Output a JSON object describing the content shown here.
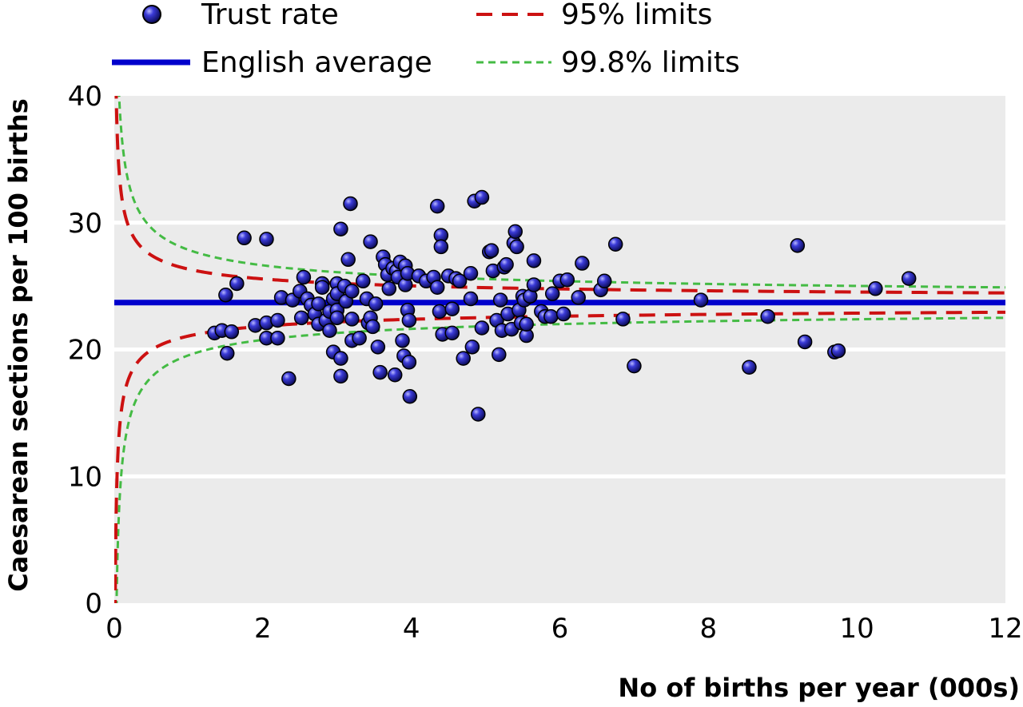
{
  "chart_data": {
    "type": "scatter",
    "xlabel": "No of births per year (000s)",
    "ylabel": "Caesarean sections per 100 births",
    "xlim": [
      0,
      12
    ],
    "ylim": [
      0,
      40
    ],
    "xticks": [
      "0",
      "2",
      "4",
      "6",
      "8",
      "10",
      "12"
    ],
    "yticks": [
      "0",
      "10",
      "20",
      "30",
      "40"
    ],
    "grid": "horizontal",
    "legend_position": "top",
    "legend": {
      "trust_rate": "Trust rate",
      "english_average": "English average",
      "limits_95": "95% limits",
      "limits_998": "99.8% limits"
    },
    "colors": {
      "points": "#2a2ab8",
      "average": "#0000cc",
      "limits_95": "#cc1111",
      "limits_998": "#44bb44",
      "plot_background": "#ebebeb"
    },
    "english_average": 23.7,
    "series": [
      {
        "name": "Trust rate",
        "points": [
          [
            1.35,
            21.3
          ],
          [
            1.45,
            21.5
          ],
          [
            1.5,
            24.3
          ],
          [
            1.52,
            19.7
          ],
          [
            1.58,
            21.4
          ],
          [
            1.65,
            25.2
          ],
          [
            1.75,
            28.8
          ],
          [
            1.9,
            21.9
          ],
          [
            2.05,
            28.7
          ],
          [
            2.05,
            22.1
          ],
          [
            2.05,
            20.9
          ],
          [
            2.2,
            22.3
          ],
          [
            2.2,
            20.9
          ],
          [
            2.25,
            24.1
          ],
          [
            2.35,
            17.7
          ],
          [
            2.4,
            23.9
          ],
          [
            2.5,
            24.6
          ],
          [
            2.52,
            22.5
          ],
          [
            2.55,
            25.7
          ],
          [
            2.6,
            24.0
          ],
          [
            2.65,
            23.5
          ],
          [
            2.7,
            22.8
          ],
          [
            2.75,
            22.0
          ],
          [
            2.75,
            23.6
          ],
          [
            2.8,
            25.2
          ],
          [
            2.8,
            24.9
          ],
          [
            2.85,
            22.3
          ],
          [
            2.9,
            21.5
          ],
          [
            2.9,
            23.0
          ],
          [
            2.95,
            24.0
          ],
          [
            3.0,
            25.2
          ],
          [
            3.0,
            24.4
          ],
          [
            3.0,
            23.1
          ],
          [
            3.0,
            22.5
          ],
          [
            2.95,
            19.8
          ],
          [
            3.05,
            19.3
          ],
          [
            3.05,
            17.9
          ],
          [
            3.05,
            29.5
          ],
          [
            3.1,
            25.0
          ],
          [
            3.12,
            23.8
          ],
          [
            3.15,
            27.1
          ],
          [
            3.18,
            31.5
          ],
          [
            3.2,
            24.6
          ],
          [
            3.2,
            22.4
          ],
          [
            3.2,
            20.7
          ],
          [
            3.3,
            20.9
          ],
          [
            3.35,
            25.4
          ],
          [
            3.4,
            24.0
          ],
          [
            3.42,
            22.1
          ],
          [
            3.45,
            28.5
          ],
          [
            3.45,
            22.5
          ],
          [
            3.48,
            21.8
          ],
          [
            3.52,
            23.6
          ],
          [
            3.55,
            20.2
          ],
          [
            3.58,
            18.2
          ],
          [
            3.62,
            27.3
          ],
          [
            3.65,
            26.7
          ],
          [
            3.68,
            25.9
          ],
          [
            3.7,
            24.8
          ],
          [
            3.75,
            26.4
          ],
          [
            3.78,
            18.0
          ],
          [
            3.8,
            26.2
          ],
          [
            3.82,
            25.7
          ],
          [
            3.85,
            26.9
          ],
          [
            3.88,
            20.7
          ],
          [
            3.9,
            19.5
          ],
          [
            3.92,
            26.6
          ],
          [
            3.92,
            25.1
          ],
          [
            3.95,
            26.0
          ],
          [
            3.95,
            23.1
          ],
          [
            3.97,
            22.3
          ],
          [
            3.97,
            19.0
          ],
          [
            3.98,
            16.3
          ],
          [
            4.1,
            25.8
          ],
          [
            4.2,
            25.4
          ],
          [
            4.3,
            25.7
          ],
          [
            4.35,
            31.3
          ],
          [
            4.35,
            24.9
          ],
          [
            4.38,
            23.0
          ],
          [
            4.4,
            29.0
          ],
          [
            4.4,
            28.1
          ],
          [
            4.42,
            21.2
          ],
          [
            4.5,
            25.8
          ],
          [
            4.55,
            23.2
          ],
          [
            4.55,
            21.3
          ],
          [
            4.6,
            25.6
          ],
          [
            4.65,
            25.4
          ],
          [
            4.7,
            19.3
          ],
          [
            4.8,
            26.0
          ],
          [
            4.8,
            24.0
          ],
          [
            4.82,
            20.2
          ],
          [
            4.85,
            31.7
          ],
          [
            4.9,
            14.9
          ],
          [
            4.95,
            32.0
          ],
          [
            4.95,
            21.7
          ],
          [
            5.05,
            27.7
          ],
          [
            5.08,
            27.8
          ],
          [
            5.1,
            26.2
          ],
          [
            5.15,
            22.3
          ],
          [
            5.18,
            19.6
          ],
          [
            5.2,
            23.9
          ],
          [
            5.22,
            21.5
          ],
          [
            5.25,
            26.5
          ],
          [
            5.28,
            26.7
          ],
          [
            5.3,
            22.8
          ],
          [
            5.35,
            21.6
          ],
          [
            5.38,
            28.4
          ],
          [
            5.4,
            29.3
          ],
          [
            5.42,
            28.1
          ],
          [
            5.45,
            23.1
          ],
          [
            5.48,
            22.1
          ],
          [
            5.5,
            24.2
          ],
          [
            5.52,
            23.9
          ],
          [
            5.55,
            21.1
          ],
          [
            5.55,
            22.0
          ],
          [
            5.6,
            24.2
          ],
          [
            5.65,
            27.0
          ],
          [
            5.65,
            25.1
          ],
          [
            5.75,
            23.0
          ],
          [
            5.8,
            22.6
          ],
          [
            5.88,
            22.6
          ],
          [
            5.9,
            24.4
          ],
          [
            6.0,
            25.4
          ],
          [
            6.05,
            22.8
          ],
          [
            6.1,
            25.5
          ],
          [
            6.25,
            24.1
          ],
          [
            6.3,
            26.8
          ],
          [
            6.55,
            24.7
          ],
          [
            6.6,
            25.4
          ],
          [
            6.75,
            28.3
          ],
          [
            6.85,
            22.4
          ],
          [
            7.0,
            18.7
          ],
          [
            7.9,
            23.9
          ],
          [
            8.55,
            18.6
          ],
          [
            8.8,
            22.6
          ],
          [
            9.2,
            28.2
          ],
          [
            9.3,
            20.6
          ],
          [
            9.7,
            19.8
          ],
          [
            9.75,
            19.9
          ],
          [
            10.25,
            24.8
          ],
          [
            10.7,
            25.6
          ]
        ]
      }
    ]
  }
}
